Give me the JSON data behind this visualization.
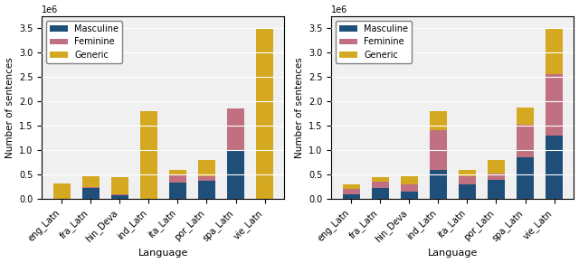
{
  "languages": [
    "eng_Latn",
    "fra_Latn",
    "hin_Deva",
    "ind_Latn",
    "ita_Latn",
    "por_Latn",
    "spa_Latn",
    "vie_Latn"
  ],
  "left": {
    "masculine": [
      0.0,
      0.22,
      0.08,
      0.0,
      0.33,
      0.38,
      1.0,
      0.0
    ],
    "feminine": [
      0.0,
      0.02,
      0.02,
      0.0,
      0.15,
      0.08,
      0.85,
      0.0
    ],
    "generic": [
      0.32,
      0.22,
      0.35,
      1.8,
      0.12,
      0.35,
      0.0,
      3.5
    ]
  },
  "right": {
    "masculine": [
      0.1,
      0.22,
      0.15,
      0.6,
      0.3,
      0.4,
      0.85,
      1.3
    ],
    "feminine": [
      0.1,
      0.13,
      0.15,
      0.82,
      0.17,
      0.12,
      0.67,
      1.27
    ],
    "generic": [
      0.1,
      0.1,
      0.16,
      0.38,
      0.13,
      0.28,
      0.35,
      0.93
    ]
  },
  "colors": {
    "masculine": "#1f4e79",
    "feminine": "#c07080",
    "generic": "#d4a820"
  },
  "ylabel": "Number of sentences",
  "xlabel": "Language",
  "ylim_left": [
    0,
    3750000.0
  ],
  "ylim_right": [
    0,
    3750000.0
  ],
  "scale": 1000000.0,
  "yticks": [
    0.0,
    0.5,
    1.0,
    1.5,
    2.0,
    2.5,
    3.0,
    3.5
  ]
}
